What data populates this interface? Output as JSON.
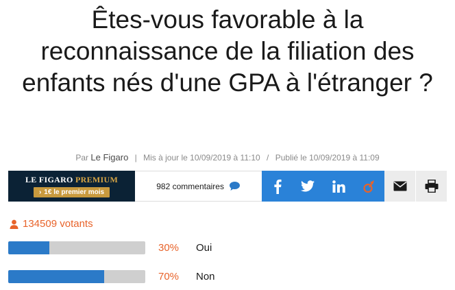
{
  "article": {
    "title": "Êtes-vous favorable à la reconnaissance de la filiation des enfants nés d'une GPA à l'étranger ?",
    "byline_prefix": "Par",
    "author": "Le Figaro",
    "updated": "Mis à jour le 10/09/2019 à 11:10",
    "published": "Publié le 10/09/2019 à 11:09"
  },
  "toolbar": {
    "premium_brand_main": "LE FIGARO ",
    "premium_brand_accent": "PREMIUM",
    "premium_offer": "1€ le premier mois",
    "comments_label": "982 commentaires",
    "share_icons": [
      "facebook-icon",
      "twitter-icon",
      "linkedin-icon",
      "viadeo-icon",
      "mail-icon",
      "print-icon"
    ]
  },
  "poll": {
    "votes_label": "134509 votants",
    "options": [
      {
        "percent_label": "30%",
        "label": "Oui",
        "fraction": 0.3
      },
      {
        "percent_label": "70%",
        "label": "Non",
        "fraction": 0.7
      }
    ]
  },
  "colors": {
    "accent_orange": "#e8632a",
    "bar_blue": "#2b7ac8",
    "social_blue": "#2a82d8",
    "premium_navy": "#0b2235",
    "premium_gold": "#c89a3e"
  }
}
